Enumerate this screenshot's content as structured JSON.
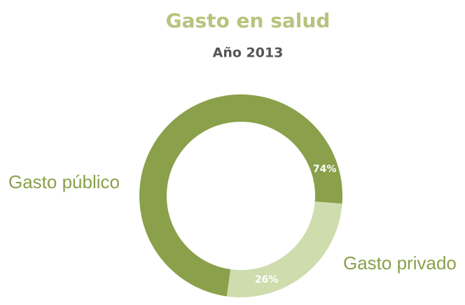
{
  "chart_data": {
    "type": "donut",
    "title": "Gasto en salud",
    "subtitle": "Año 2013",
    "categories": [
      "Gasto público",
      "Gasto privado"
    ],
    "values": [
      74,
      26
    ],
    "value_labels": [
      "74%",
      "26%"
    ],
    "colors": [
      "#8aa04a",
      "#cfdcae"
    ]
  }
}
